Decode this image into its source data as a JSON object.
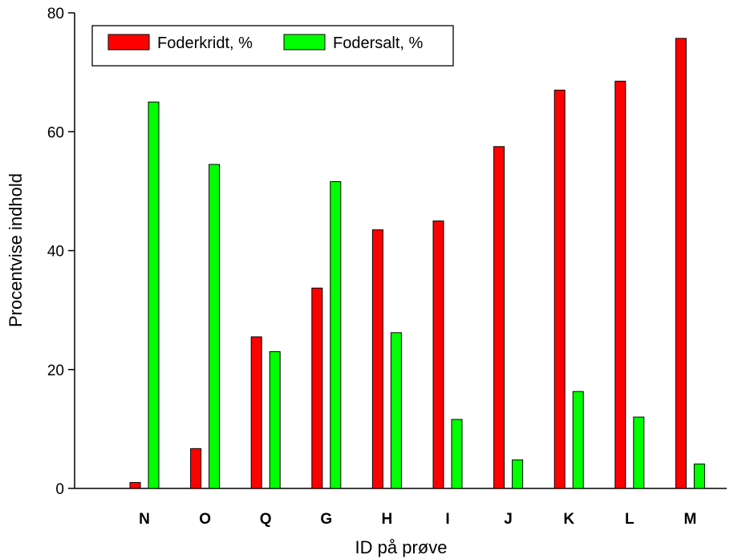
{
  "chart_data": {
    "type": "bar",
    "xlabel": "ID på prøve",
    "ylabel": "Procentvise indhold",
    "ylim": [
      0,
      80
    ],
    "yticks": [
      0,
      20,
      40,
      60,
      80
    ],
    "grid": false,
    "legend_position": "top-left",
    "categories": [
      "N",
      "O",
      "Q",
      "G",
      "H",
      "I",
      "J",
      "K",
      "L",
      "M"
    ],
    "series": [
      {
        "name": "Foderkridt, %",
        "color": "#ff0000",
        "values": [
          1.0,
          6.7,
          25.5,
          33.7,
          43.5,
          45.0,
          57.5,
          67.0,
          68.5,
          75.7
        ]
      },
      {
        "name": "Fodersalt, %",
        "color": "#00ff00",
        "values": [
          65.0,
          54.5,
          23.0,
          51.6,
          26.2,
          11.6,
          4.8,
          16.3,
          12.0,
          4.1
        ]
      }
    ]
  }
}
